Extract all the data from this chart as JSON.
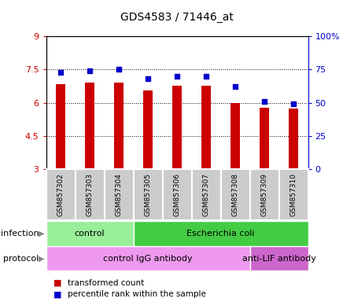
{
  "title": "GDS4583 / 71446_at",
  "samples": [
    "GSM857302",
    "GSM857303",
    "GSM857304",
    "GSM857305",
    "GSM857306",
    "GSM857307",
    "GSM857308",
    "GSM857309",
    "GSM857310"
  ],
  "transformed_count": [
    6.85,
    6.9,
    6.9,
    6.55,
    6.75,
    6.75,
    5.98,
    5.78,
    5.72
  ],
  "percentile_rank": [
    73,
    74,
    75,
    68,
    70,
    70,
    62,
    51,
    49
  ],
  "ylim_left": [
    3,
    9
  ],
  "ylim_right": [
    0,
    100
  ],
  "yticks_left": [
    3,
    4.5,
    6,
    7.5,
    9
  ],
  "yticks_right": [
    0,
    25,
    50,
    75,
    100
  ],
  "ytick_labels_left": [
    "3",
    "4.5",
    "6",
    "7.5",
    "9"
  ],
  "ytick_labels_right": [
    "0",
    "25",
    "50",
    "75",
    "100%"
  ],
  "bar_color": "#cc0000",
  "dot_color": "#0000cc",
  "bar_width": 0.5,
  "infection_groups": [
    {
      "label": "control",
      "start": 0,
      "end": 3,
      "color": "#99ee99"
    },
    {
      "label": "Escherichia coli",
      "start": 3,
      "end": 9,
      "color": "#44cc44"
    }
  ],
  "protocol_groups": [
    {
      "label": "control IgG antibody",
      "start": 0,
      "end": 7,
      "color": "#ee99ee"
    },
    {
      "label": "anti-LIF antibody",
      "start": 7,
      "end": 9,
      "color": "#cc66cc"
    }
  ],
  "legend_items": [
    {
      "label": "transformed count",
      "color": "#cc0000"
    },
    {
      "label": "percentile rank within the sample",
      "color": "#0000cc"
    }
  ],
  "infection_label": "infection",
  "protocol_label": "protocol",
  "sample_box_color": "#cccccc",
  "sample_box_edge": "#ffffff"
}
